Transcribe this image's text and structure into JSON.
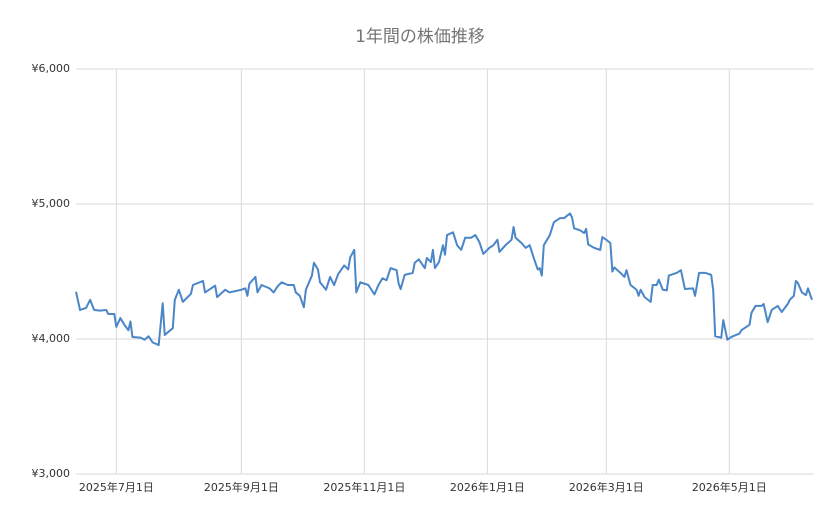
{
  "chart_data": {
    "type": "line",
    "title": "1年間の株価推移",
    "x": [
      "2025-06-11",
      "2025-06-13",
      "2025-06-16",
      "2025-06-18",
      "2025-06-20",
      "2025-06-23",
      "2025-06-26",
      "2025-06-27",
      "2025-06-30",
      "2025-07-01",
      "2025-07-03",
      "2025-07-05",
      "2025-07-07",
      "2025-07-08",
      "2025-07-09",
      "2025-07-13",
      "2025-07-15",
      "2025-07-17",
      "2025-07-19",
      "2025-07-22",
      "2025-07-24",
      "2025-07-25",
      "2025-07-29",
      "2025-07-30",
      "2025-08-01",
      "2025-08-03",
      "2025-08-07",
      "2025-08-08",
      "2025-08-13",
      "2025-08-14",
      "2025-08-19",
      "2025-08-20",
      "2025-08-24",
      "2025-08-26",
      "2025-09-01",
      "2025-09-03",
      "2025-09-04",
      "2025-09-05",
      "2025-09-08",
      "2025-09-09",
      "2025-09-11",
      "2025-09-15",
      "2025-09-17",
      "2025-09-19",
      "2025-09-21",
      "2025-09-24",
      "2025-09-27",
      "2025-09-28",
      "2025-09-30",
      "2025-10-02",
      "2025-10-03",
      "2025-10-06",
      "2025-10-07",
      "2025-10-09",
      "2025-10-10",
      "2025-10-13",
      "2025-10-15",
      "2025-10-17",
      "2025-10-19",
      "2025-10-22",
      "2025-10-24",
      "2025-10-25",
      "2025-10-27",
      "2025-10-28",
      "2025-10-30",
      "2025-11-03",
      "2025-11-06",
      "2025-11-08",
      "2025-11-10",
      "2025-11-12",
      "2025-11-14",
      "2025-11-17",
      "2025-11-18",
      "2025-11-19",
      "2025-11-21",
      "2025-11-25",
      "2025-11-26",
      "2025-11-28",
      "2025-12-01",
      "2025-12-02",
      "2025-12-04",
      "2025-12-05",
      "2025-12-06",
      "2025-12-08",
      "2025-12-10",
      "2025-12-11",
      "2025-12-12",
      "2025-12-15",
      "2025-12-17",
      "2025-12-19",
      "2025-12-21",
      "2025-12-24",
      "2025-12-26",
      "2025-12-28",
      "2025-12-30",
      "2026-01-02",
      "2026-01-04",
      "2026-01-06",
      "2026-01-07",
      "2026-01-10",
      "2026-01-13",
      "2026-01-14",
      "2026-01-15",
      "2026-01-18",
      "2026-01-20",
      "2026-01-22",
      "2026-01-24",
      "2026-01-26",
      "2026-01-27",
      "2026-01-28",
      "2026-01-29",
      "2026-02-01",
      "2026-02-03",
      "2026-02-06",
      "2026-02-08",
      "2026-02-11",
      "2026-02-12",
      "2026-02-13",
      "2026-02-16",
      "2026-02-18",
      "2026-02-19",
      "2026-02-20",
      "2026-02-23",
      "2026-02-26",
      "2026-02-27",
      "2026-03-01",
      "2026-03-03",
      "2026-03-04",
      "2026-03-05",
      "2026-03-08",
      "2026-03-10",
      "2026-03-11",
      "2026-03-13",
      "2026-03-16",
      "2026-03-17",
      "2026-03-18",
      "2026-03-20",
      "2026-03-23",
      "2026-03-24",
      "2026-03-26",
      "2026-03-27",
      "2026-03-29",
      "2026-03-31",
      "2026-04-01",
      "2026-04-05",
      "2026-04-07",
      "2026-04-09",
      "2026-04-13",
      "2026-04-14",
      "2026-04-16",
      "2026-04-19",
      "2026-04-22",
      "2026-04-23",
      "2026-04-24",
      "2026-04-27",
      "2026-04-28",
      "2026-04-30",
      "2026-05-02",
      "2026-05-06",
      "2026-05-07",
      "2026-05-11",
      "2026-05-12",
      "2026-05-14",
      "2026-05-17",
      "2026-05-18",
      "2026-05-20",
      "2026-05-22",
      "2026-05-25",
      "2026-05-27",
      "2026-05-30",
      "2026-05-31",
      "2026-06-02",
      "2026-06-03",
      "2026-06-04",
      "2026-06-06",
      "2026-06-08",
      "2026-06-09",
      "2026-06-11"
    ],
    "series": [
      {
        "color": "#4a86c8",
        "values": [
          4350,
          4215,
          4230,
          4290,
          4215,
          4210,
          4215,
          4185,
          4185,
          4090,
          4155,
          4105,
          4065,
          4130,
          4015,
          4010,
          3995,
          4020,
          3975,
          3955,
          4265,
          4030,
          4080,
          4290,
          4365,
          4275,
          4335,
          4400,
          4430,
          4345,
          4395,
          4310,
          4365,
          4345,
          4365,
          4375,
          4320,
          4410,
          4460,
          4345,
          4400,
          4375,
          4345,
          4390,
          4420,
          4400,
          4400,
          4345,
          4320,
          4235,
          4365,
          4470,
          4565,
          4515,
          4420,
          4365,
          4460,
          4400,
          4480,
          4545,
          4515,
          4605,
          4660,
          4345,
          4420,
          4400,
          4330,
          4400,
          4450,
          4435,
          4525,
          4510,
          4410,
          4370,
          4475,
          4490,
          4565,
          4590,
          4525,
          4600,
          4570,
          4660,
          4525,
          4570,
          4695,
          4625,
          4770,
          4790,
          4695,
          4660,
          4750,
          4750,
          4770,
          4720,
          4630,
          4675,
          4695,
          4735,
          4645,
          4695,
          4735,
          4830,
          4750,
          4710,
          4675,
          4695,
          4600,
          4515,
          4525,
          4470,
          4695,
          4770,
          4865,
          4895,
          4895,
          4930,
          4900,
          4820,
          4805,
          4785,
          4815,
          4700,
          4675,
          4660,
          4755,
          4735,
          4710,
          4500,
          4530,
          4490,
          4460,
          4510,
          4400,
          4365,
          4320,
          4365,
          4310,
          4275,
          4400,
          4400,
          4440,
          4365,
          4360,
          4470,
          4490,
          4510,
          4370,
          4375,
          4320,
          4490,
          4490,
          4475,
          4365,
          4020,
          4010,
          4140,
          3995,
          4015,
          4040,
          4065,
          4105,
          4195,
          4245,
          4245,
          4260,
          4125,
          4215,
          4245,
          4200,
          4260,
          4290,
          4320,
          4430,
          4415,
          4345,
          4325,
          4375,
          4290
        ]
      }
    ],
    "xlim": [
      "2025-06-11",
      "2026-06-11"
    ],
    "xticks": [
      {
        "value": "2025-07-01",
        "label": "2025年7月1日"
      },
      {
        "value": "2025-09-01",
        "label": "2025年9月1日"
      },
      {
        "value": "2025-11-01",
        "label": "2025年11月1日"
      },
      {
        "value": "2026-01-01",
        "label": "2026年1月1日"
      },
      {
        "value": "2026-03-01",
        "label": "2026年3月1日"
      },
      {
        "value": "2026-05-01",
        "label": "2026年5月1日"
      }
    ],
    "ylim": [
      3000,
      6000
    ],
    "yticks": [
      {
        "value": 3000,
        "label": "¥3,000"
      },
      {
        "value": 4000,
        "label": "¥4,000"
      },
      {
        "value": 5000,
        "label": "¥5,000"
      },
      {
        "value": 6000,
        "label": "¥6,000"
      }
    ],
    "grid": true
  }
}
